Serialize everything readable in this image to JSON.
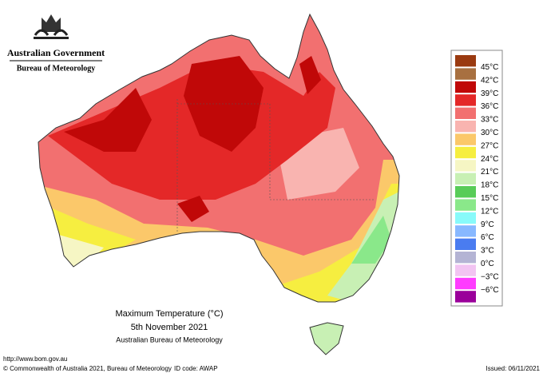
{
  "header": {
    "government": "Australian Government",
    "bureau": "Bureau of Meteorology"
  },
  "legend": {
    "labels": [
      "45°C",
      "42°C",
      "39°C",
      "36°C",
      "33°C",
      "30°C",
      "27°C",
      "24°C",
      "21°C",
      "18°C",
      "15°C",
      "12°C",
      "9°C",
      "6°C",
      "3°C",
      "0°C",
      "−3°C",
      "−6°C"
    ],
    "colors": [
      "#9a3a10",
      "#a87040",
      "#c00808",
      "#e42828",
      "#f27070",
      "#f9b4b0",
      "#fbc86a",
      "#f6ee40",
      "#f6f6c4",
      "#c8f0b4",
      "#58cc58",
      "#8ae88a",
      "#88fafa",
      "#88b8ff",
      "#4a7cf0",
      "#b4b4d4",
      "#f2c4f2",
      "#ff3cff",
      "#9a009a"
    ]
  },
  "caption": {
    "title": "Maximum Temperature (°C)",
    "date": "5th November 2021",
    "source": "Australian Bureau of Meteorology"
  },
  "footer": {
    "url": "http://www.bom.gov.au",
    "copyright": "© Commonwealth of Australia 2021, Bureau of Meteorology",
    "id_code": "ID code: AWAP",
    "issued": "Issued: 06/11/2021"
  }
}
